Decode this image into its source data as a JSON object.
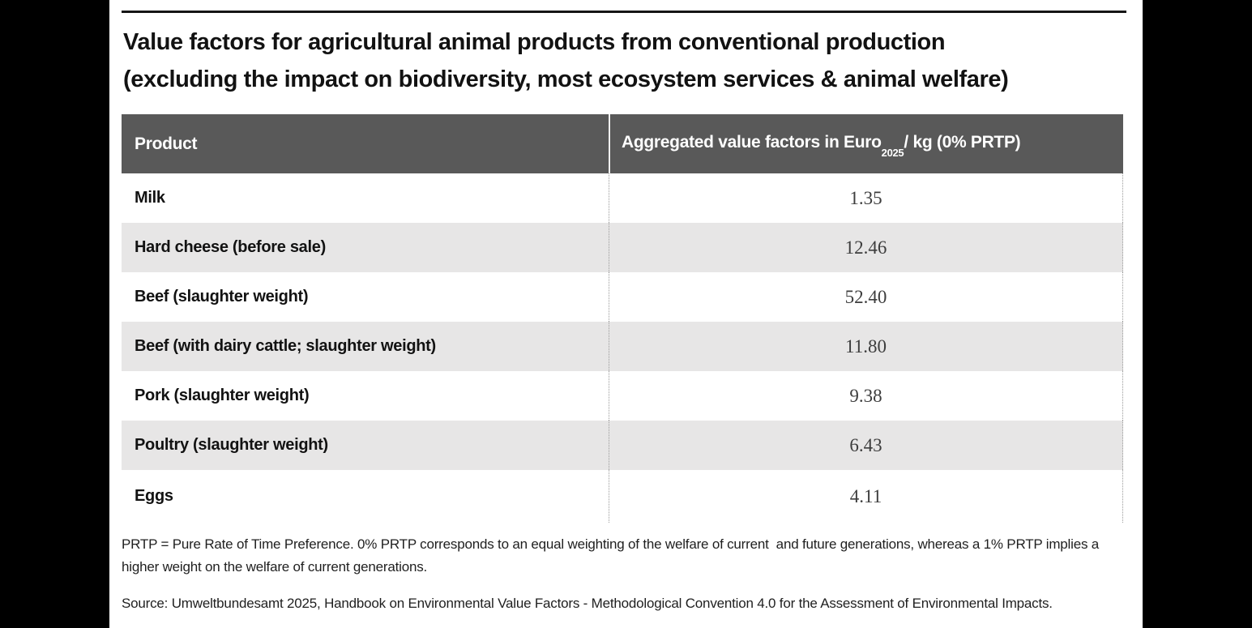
{
  "title": {
    "line1": "Value factors for agricultural animal products from conventional production",
    "line2": "(excluding the impact on biodiversity, most ecosystem services & animal welfare)"
  },
  "table": {
    "columns": [
      {
        "label": "Product"
      },
      {
        "prefix": "Aggregated value factors in Euro",
        "subscript": "2025",
        "suffix": "/ kg (0% PRTP)"
      }
    ],
    "rows": [
      {
        "product": "Milk",
        "value": "1.35"
      },
      {
        "product": "Hard cheese (before sale)",
        "value": "12.46"
      },
      {
        "product": "Beef (slaughter weight)",
        "value": "52.40"
      },
      {
        "product": "Beef (with dairy cattle; slaughter weight)",
        "value": "11.80"
      },
      {
        "product": "Pork (slaughter weight)",
        "value": "9.38"
      },
      {
        "product": "Poultry (slaughter weight)",
        "value": "6.43"
      },
      {
        "product": "Eggs",
        "value": "4.11"
      }
    ]
  },
  "footnotes": {
    "prtp_note": "PRTP = Pure Rate of Time Preference. 0% PRTP corresponds to an equal weighting of the welfare of current  and future generations, whereas a 1% PRTP implies a higher weight on the welfare of current generations.",
    "source_note": "Source: Umweltbundesamt 2025, Handbook on Environmental Value Factors - Methodological Convention 4.0 for the Assessment of Environmental Impacts."
  },
  "colors": {
    "letterbox": "#000000",
    "header_background": "#595959",
    "header_text": "#ffffff",
    "row_alternate": "#e7e6e6",
    "title_rule": "#151515",
    "value_text": "#3d3d3d"
  },
  "chart_data": {
    "type": "table",
    "title": "Value factors for agricultural animal products from conventional production (excluding the impact on biodiversity, most ecosystem services & animal welfare)",
    "columns": [
      "Product",
      "Aggregated value factors in Euro2025/ kg (0% PRTP)"
    ],
    "rows": [
      [
        "Milk",
        1.35
      ],
      [
        "Hard cheese (before sale)",
        12.46
      ],
      [
        "Beef (slaughter weight)",
        52.4
      ],
      [
        "Beef (with dairy cattle; slaughter weight)",
        11.8
      ],
      [
        "Pork (slaughter weight)",
        9.38
      ],
      [
        "Poultry (slaughter weight)",
        6.43
      ],
      [
        "Eggs",
        4.11
      ]
    ],
    "notes": [
      "PRTP = Pure Rate of Time Preference. 0% PRTP corresponds to an equal weighting of the welfare of current  and future generations, whereas a 1% PRTP implies a higher weight on the welfare of current generations.",
      "Source: Umweltbundesamt 2025, Handbook on Environmental Value Factors - Methodological Convention 4.0 for the Assessment of Environmental Impacts."
    ]
  }
}
